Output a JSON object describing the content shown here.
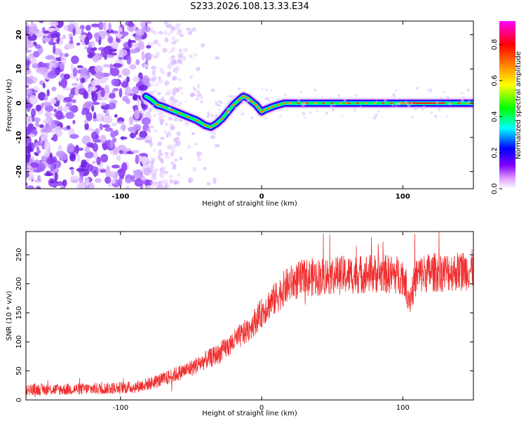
{
  "title": "S233.2026.108.13.33.E34",
  "chart_data": [
    {
      "type": "heatmap",
      "title": "S233.2026.108.13.33.E34",
      "xlabel": "Height of straight line (km)",
      "ylabel": "Frequency (Hz)",
      "xlim": [
        -167,
        150
      ],
      "ylim": [
        -25,
        24
      ],
      "xticks": [
        -100,
        0,
        100
      ],
      "xtick_labels": [
        "-100",
        "0",
        "100"
      ],
      "yticks": [
        20,
        10,
        0,
        -10,
        -20
      ],
      "ytick_labels": [
        "20",
        "10",
        "0",
        "-10",
        "-20"
      ],
      "ridge_x": [
        -82,
        -78,
        -74,
        -70,
        -64,
        -58,
        -52,
        -46,
        -40,
        -36,
        -32,
        -28,
        -24,
        -20,
        -16,
        -13,
        -10,
        -7,
        -4,
        -2,
        0,
        2,
        5,
        8,
        12,
        16,
        20,
        30,
        60,
        100,
        103,
        108,
        120,
        150
      ],
      "ridge_y": [
        2,
        1,
        -0.5,
        -1,
        -2,
        -3,
        -4,
        -5,
        -6.5,
        -7,
        -6,
        -4.5,
        -2.5,
        -0.5,
        1,
        2,
        1.5,
        0.5,
        -0.5,
        -1.5,
        -2.5,
        -2,
        -1.5,
        -1,
        -0.5,
        0,
        0,
        0,
        0,
        0,
        0,
        0,
        0,
        0
      ],
      "colorbar": {
        "label": "Normalized spectral amplitude",
        "range": [
          0,
          0.93
        ],
        "ticks": [
          "0.0",
          "0.2",
          "0.4",
          "0.6",
          "0.8"
        ],
        "tick_values": [
          0,
          0.2,
          0.4,
          0.6,
          0.8
        ],
        "colors": [
          "#ffffff",
          "#8000ff",
          "#0000ff",
          "#00ffff",
          "#00ff00",
          "#ffff00",
          "#ff8000",
          "#ff0000",
          "#ff00ff"
        ]
      }
    },
    {
      "type": "line",
      "xlabel": "Height of straight line (km)",
      "ylabel": "SNR (10 * v/v)",
      "xlim": [
        -167,
        150
      ],
      "ylim": [
        0,
        290
      ],
      "xticks": [
        -100,
        0,
        100
      ],
      "xtick_labels": [
        "-100",
        "0",
        "100"
      ],
      "yticks": [
        0,
        50,
        100,
        150,
        200,
        250
      ],
      "ytick_labels": [
        "0",
        "50",
        "100",
        "150",
        "200",
        "250"
      ],
      "series": [
        {
          "name": "SNR",
          "color": "#f03030",
          "x": [
            -167,
            -140,
            -110,
            -90,
            -80,
            -70,
            -60,
            -50,
            -40,
            -30,
            -20,
            -10,
            0,
            5,
            10,
            15,
            20,
            25,
            30,
            40,
            50,
            60,
            80,
            100,
            105,
            110,
            120,
            130,
            140,
            150
          ],
          "y": [
            18,
            18,
            20,
            22,
            28,
            35,
            45,
            55,
            68,
            80,
            100,
            120,
            150,
            165,
            175,
            190,
            200,
            205,
            210,
            212,
            215,
            215,
            218,
            215,
            175,
            215,
            220,
            220,
            222,
            225
          ]
        }
      ]
    }
  ]
}
